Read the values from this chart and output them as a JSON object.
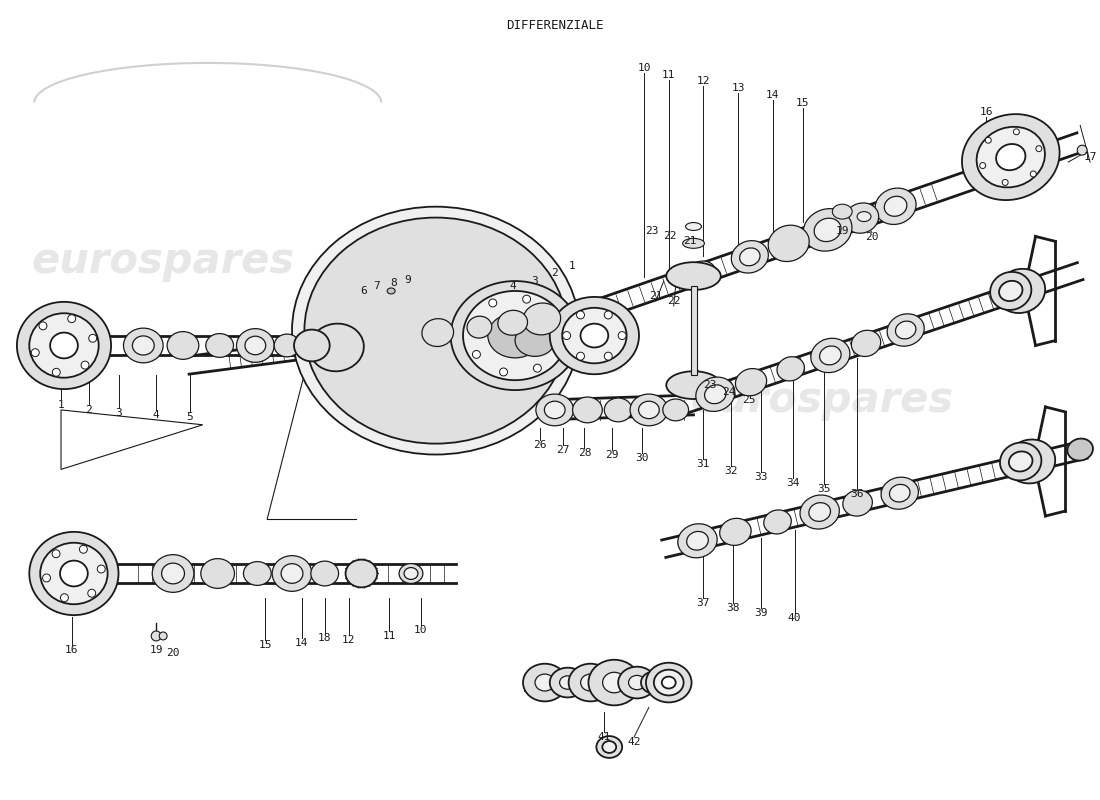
{
  "title": "DIFFERENZIALE",
  "background_color": "#ffffff",
  "line_color": "#1a1a1a",
  "fill_light": "#f0f0f0",
  "fill_mid": "#e0e0e0",
  "fill_dark": "#c8c8c8",
  "watermark_color": "#d0d0d0",
  "watermark_text": "eurospares",
  "title_fontsize": 9,
  "label_fontsize": 8
}
